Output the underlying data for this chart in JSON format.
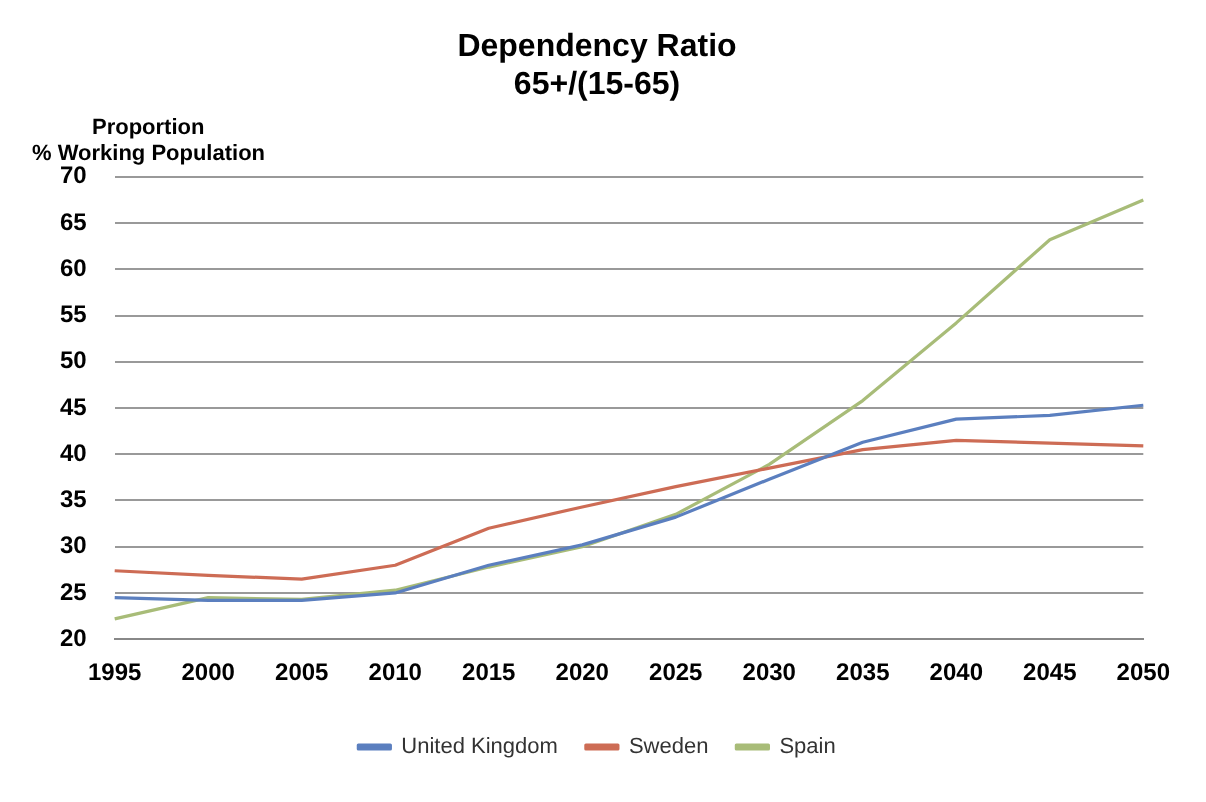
{
  "chart_data": {
    "type": "line",
    "title": "Dependency Ratio",
    "subtitle": "65+/(15-65)",
    "ylabel": "Proportion\n% Working Population",
    "categories": [
      "1995",
      "2000",
      "2005",
      "2010",
      "2015",
      "2020",
      "2025",
      "2030",
      "2035",
      "2040",
      "2045",
      "2050"
    ],
    "series": [
      {
        "name": "United Kingdom",
        "color": "#5b7fbf",
        "values": [
          24.5,
          24.2,
          24.2,
          25.0,
          28.0,
          30.2,
          33.2,
          37.3,
          41.3,
          43.8,
          44.2,
          45.3
        ]
      },
      {
        "name": "Sweden",
        "color": "#cd6c55",
        "values": [
          27.4,
          26.9,
          26.5,
          28.0,
          32.0,
          34.3,
          36.5,
          38.5,
          40.5,
          41.5,
          41.2,
          40.9
        ]
      },
      {
        "name": "Spain",
        "color": "#a8bc78",
        "values": [
          22.2,
          24.5,
          24.3,
          25.3,
          27.8,
          30.0,
          33.5,
          38.9,
          45.8,
          54.2,
          63.2,
          67.5
        ]
      }
    ],
    "ylim": [
      20,
      70
    ],
    "yticks": [
      20,
      25,
      30,
      35,
      40,
      45,
      50,
      55,
      60,
      65,
      70
    ],
    "grid": "y",
    "legend": "bottom",
    "marker": "none",
    "line_style": "solid"
  }
}
